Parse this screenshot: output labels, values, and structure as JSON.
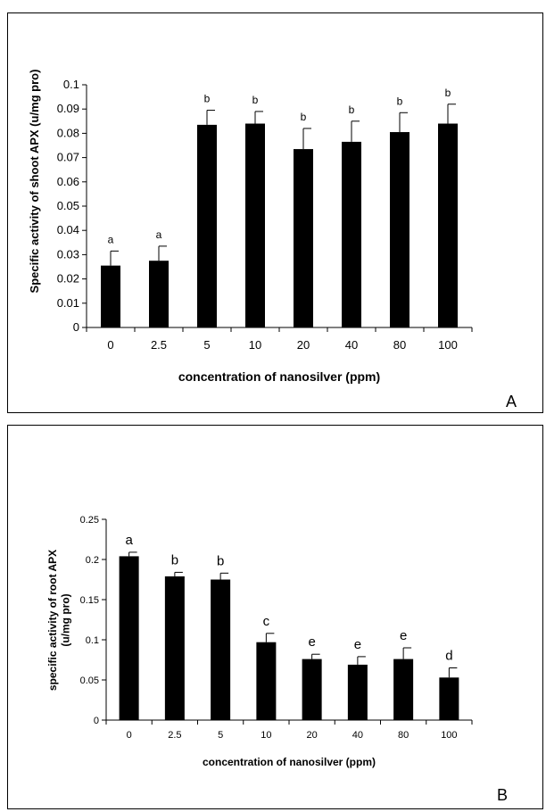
{
  "chart_data": [
    {
      "type": "bar",
      "panel_label": "A",
      "title": "",
      "ylabel": "Specific activity of shoot APX (u/mg pro)",
      "xlabel": "concentration of nanosilver (ppm)",
      "categories": [
        "0",
        "2.5",
        "5",
        "10",
        "20",
        "40",
        "80",
        "100"
      ],
      "values": [
        0.0255,
        0.0275,
        0.0835,
        0.084,
        0.0735,
        0.0765,
        0.0805,
        0.084
      ],
      "errors": [
        0.006,
        0.006,
        0.006,
        0.005,
        0.0085,
        0.0085,
        0.008,
        0.008
      ],
      "letters": [
        "a",
        "a",
        "b",
        "b",
        "b",
        "b",
        "b",
        "b"
      ],
      "ylim": [
        0,
        0.1
      ],
      "yticks": [
        "0",
        "0.01",
        "0.02",
        "0.03",
        "0.04",
        "0.05",
        "0.06",
        "0.07",
        "0.08",
        "0.09",
        "0.1"
      ],
      "bar_color": "#000000",
      "grid": false
    },
    {
      "type": "bar",
      "panel_label": "B",
      "title": "",
      "ylabel": "specific activity of root APX (u/mg pro)",
      "xlabel": "concentration of nanosilver (ppm)",
      "categories": [
        "0",
        "2.5",
        "5",
        "10",
        "20",
        "40",
        "80",
        "100"
      ],
      "values": [
        0.204,
        0.179,
        0.175,
        0.097,
        0.076,
        0.069,
        0.076,
        0.053
      ],
      "errors": [
        0.005,
        0.005,
        0.008,
        0.011,
        0.006,
        0.01,
        0.014,
        0.012
      ],
      "letters": [
        "a",
        "b",
        "b",
        "c",
        "e",
        "e",
        "e",
        "d"
      ],
      "ylim": [
        0,
        0.25
      ],
      "yticks": [
        "0",
        "0.05",
        "0.1",
        "0.15",
        "0.2",
        "0.25"
      ],
      "bar_color": "#000000",
      "grid": false
    }
  ]
}
